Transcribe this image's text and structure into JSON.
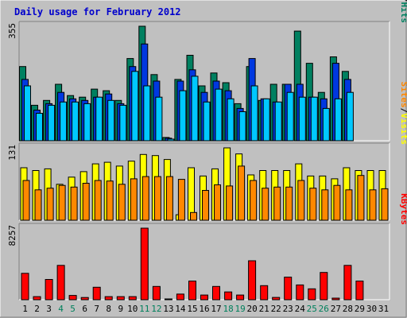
{
  "chart_data": {
    "type": "bar",
    "title": "Daily usage for February 2012",
    "days": [
      "1",
      "2",
      "3",
      "4",
      "5",
      "6",
      "7",
      "8",
      "9",
      "10",
      "11",
      "12",
      "13",
      "14",
      "15",
      "16",
      "17",
      "18",
      "19",
      "20",
      "21",
      "22",
      "23",
      "24",
      "25",
      "26",
      "27",
      "28",
      "29",
      "30",
      "31"
    ],
    "weekend_days": [
      "4",
      "5",
      "11",
      "12",
      "18",
      "19",
      "25",
      "26"
    ],
    "colors": {
      "hits": "#008060",
      "files": "#0038e0",
      "pages": "#00c8ff",
      "visits": "#ffff00",
      "sites": "#ff8800",
      "kbytes": "#ff0000",
      "weekday_label": "#000000",
      "weekend_label": "#00805c",
      "title": "#0000cc",
      "plot_bg": "#c0c0c0"
    },
    "panels": [
      {
        "id": "requests",
        "ymax_label": "355",
        "ymax": 355,
        "legend": [
          {
            "text": "Hits",
            "color": "#008060"
          },
          {
            "text": "Files",
            "color": "#0038e0"
          },
          {
            "text": "Pages",
            "color": "#00c8ff"
          }
        ],
        "series": [
          {
            "name": "Hits",
            "color": "#008060",
            "values": [
              230,
              110,
              125,
              175,
              140,
              135,
              160,
              155,
              125,
              255,
              355,
              205,
              10,
              190,
              265,
              170,
              210,
              180,
              115,
              230,
              125,
              175,
              175,
              340,
              240,
              150,
              260,
              215,
              0,
              0,
              0
            ]
          },
          {
            "name": "Files",
            "color": "#0038e0",
            "values": [
              190,
              95,
              115,
              150,
              130,
              125,
              135,
              145,
              115,
              230,
              300,
              185,
              8,
              185,
              220,
              150,
              185,
              155,
              100,
              255,
              130,
              120,
              175,
              175,
              135,
              130,
              240,
              190,
              0,
              0,
              0
            ]
          },
          {
            "name": "Pages",
            "color": "#00c8ff",
            "values": [
              170,
              85,
              110,
              120,
              120,
              115,
              135,
              125,
              110,
              215,
              170,
              135,
              5,
              155,
              200,
              120,
              160,
              130,
              90,
              170,
              130,
              120,
              150,
              135,
              135,
              100,
              130,
              150,
              0,
              0,
              0
            ]
          }
        ]
      },
      {
        "id": "visitors",
        "ymax_label": "131",
        "ymax": 131,
        "legend": [
          {
            "text": "Visits",
            "color": "#ffff00"
          },
          {
            "text": "Sites",
            "color": "#ff8800"
          }
        ],
        "series": [
          {
            "name": "Visits",
            "color": "#ffff00",
            "values": [
              95,
              90,
              93,
              65,
              78,
              88,
              102,
              105,
              98,
              107,
              119,
              117,
              110,
              10,
              95,
              80,
              93,
              131,
              120,
              82,
              90,
              90,
              90,
              102,
              80,
              80,
              75,
              95,
              90,
              90,
              90
            ]
          },
          {
            "name": "Sites",
            "color": "#ff8800",
            "values": [
              72,
              55,
              58,
              63,
              60,
              67,
              72,
              71,
              65,
              75,
              79,
              79,
              79,
              74,
              14,
              54,
              64,
              62,
              98,
              72,
              58,
              60,
              60,
              72,
              58,
              55,
              63,
              55,
              81,
              55,
              57
            ]
          }
        ]
      },
      {
        "id": "kbytes",
        "ymax_label": "8257",
        "ymax": 8257,
        "legend": [
          {
            "text": "KBytes",
            "color": "#ff0000"
          }
        ],
        "series": [
          {
            "name": "KBytes",
            "color": "#ff0000",
            "values": [
              3050,
              360,
              2340,
              3960,
              500,
              260,
              1440,
              360,
              360,
              360,
              8257,
              1530,
              70,
              650,
              2160,
              540,
              1530,
              900,
              540,
              4500,
              1620,
              270,
              2610,
              1710,
              1260,
              3150,
              180,
              3960,
              2160,
              0,
              0
            ]
          }
        ]
      }
    ]
  }
}
